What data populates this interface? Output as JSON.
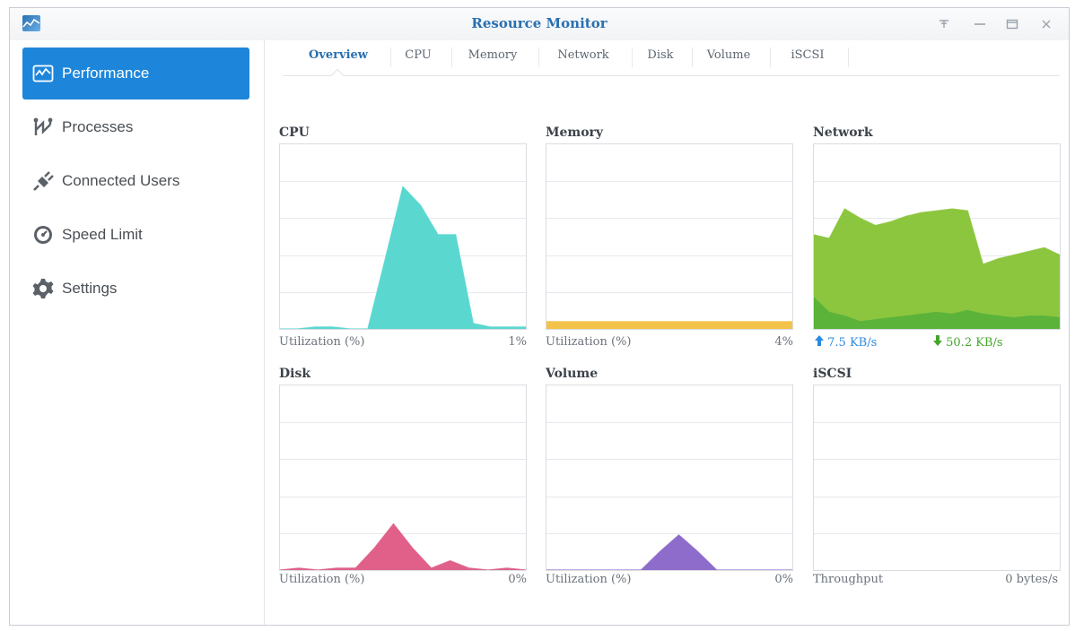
{
  "window": {
    "title": "Resource Monitor"
  },
  "sidebar": {
    "items": [
      {
        "label": "Performance",
        "icon": "performance-chart-icon"
      },
      {
        "label": "Processes",
        "icon": "processes-icon"
      },
      {
        "label": "Connected Users",
        "icon": "plug-icon"
      },
      {
        "label": "Speed Limit",
        "icon": "gauge-icon"
      },
      {
        "label": "Settings",
        "icon": "gear-icon"
      }
    ],
    "active": "Performance"
  },
  "tabs": [
    "Overview",
    "CPU",
    "Memory",
    "Network",
    "Disk",
    "Volume",
    "iSCSI"
  ],
  "active_tab": "Overview",
  "panels": {
    "cpu": {
      "title": "CPU",
      "caption": "Utilization (%)",
      "value": "1%",
      "color": "#5ad8d0"
    },
    "memory": {
      "title": "Memory",
      "caption": "Utilization (%)",
      "value": "4%",
      "color": "#f2c24b"
    },
    "network": {
      "title": "Network",
      "upload": "7.5 KB/s",
      "download": "50.2 KB/s",
      "color_total": "#8cc63f",
      "color_down": "#5bb33a"
    },
    "disk": {
      "title": "Disk",
      "caption": "Utilization (%)",
      "value": "0%",
      "color": "#e0608a"
    },
    "volume": {
      "title": "Volume",
      "caption": "Utilization (%)",
      "value": "0%",
      "color": "#8e6ccc"
    },
    "iscsi": {
      "title": "iSCSI",
      "caption": "Throughput",
      "value": "0 bytes/s"
    }
  },
  "chart_data": [
    {
      "type": "area",
      "title": "CPU",
      "ylim": [
        0,
        100
      ],
      "values": [
        0,
        0,
        1,
        1,
        0,
        0,
        38,
        77,
        67,
        51,
        51,
        3,
        1,
        1,
        1
      ]
    },
    {
      "type": "area",
      "title": "Memory",
      "ylim": [
        0,
        100
      ],
      "values": [
        4,
        4,
        4,
        4,
        4,
        4,
        4,
        4,
        4,
        4,
        4,
        4,
        4,
        4,
        4
      ]
    },
    {
      "type": "area",
      "title": "Network",
      "series": [
        {
          "values": [
            51,
            49,
            65,
            60,
            56,
            58,
            61,
            63,
            64,
            65,
            64,
            35,
            38,
            40,
            42,
            44,
            40
          ]
        },
        {
          "values": [
            17,
            9,
            7,
            4,
            5,
            6,
            7,
            8,
            9,
            8,
            10,
            8,
            7,
            6,
            7,
            7,
            6
          ]
        }
      ]
    },
    {
      "type": "area",
      "title": "Disk",
      "ylim": [
        0,
        100
      ],
      "values": [
        0,
        1,
        0,
        1,
        1,
        12,
        25,
        12,
        1,
        5,
        1,
        0,
        1,
        0
      ]
    },
    {
      "type": "area",
      "title": "Volume",
      "ylim": [
        0,
        100
      ],
      "values": [
        0,
        0,
        0,
        0,
        0,
        0,
        10,
        19,
        10,
        0,
        0,
        0,
        0,
        0
      ]
    },
    {
      "type": "area",
      "title": "iSCSI",
      "ylim": [
        0,
        100
      ],
      "values": []
    }
  ]
}
